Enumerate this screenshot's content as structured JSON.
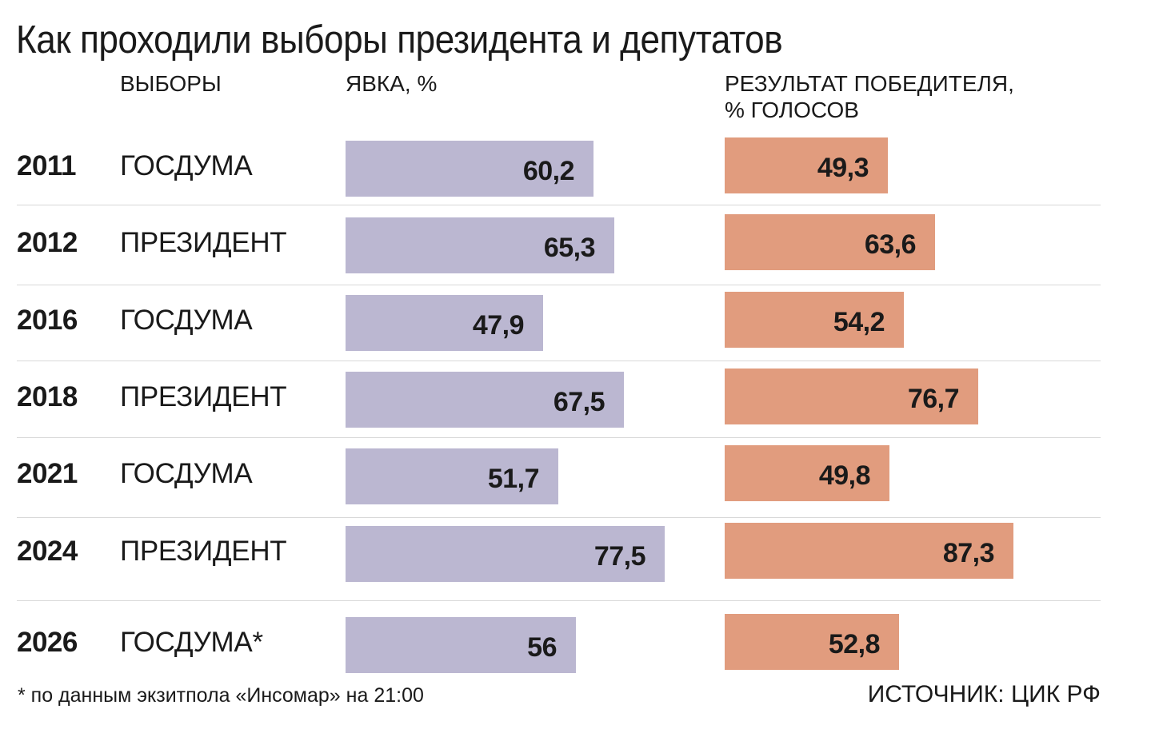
{
  "title": "Как проходили выборы президента и депутатов",
  "headers": {
    "elections": "ВЫБОРЫ",
    "turnout": "ЯВКА, %",
    "result_line1": "РЕЗУЛЬТАТ ПОБЕДИТЕЛЯ,",
    "result_line2": "% ГОЛОСОВ"
  },
  "colors": {
    "turnout": "#bbb7d1",
    "result": "#e19c7e",
    "divider": "#d8d8d8",
    "text": "#1a1a1a"
  },
  "chart_data": {
    "type": "bar",
    "orientation": "horizontal",
    "categories": [
      "2011",
      "2012",
      "2016",
      "2018",
      "2021",
      "2024",
      "2026"
    ],
    "election_types": [
      "ГОСДУМА",
      "ПРЕЗИДЕНТ",
      "ГОСДУМА",
      "ПРЕЗИДЕНТ",
      "ГОСДУМА",
      "ПРЕЗИДЕНТ",
      "ГОСДУМА*"
    ],
    "series": [
      {
        "name": "ЯВКА, %",
        "values": [
          60.2,
          65.3,
          47.9,
          67.5,
          51.7,
          77.5,
          56
        ],
        "labels": [
          "60,2",
          "65,3",
          "47,9",
          "67,5",
          "51,7",
          "77,5",
          "56"
        ]
      },
      {
        "name": "РЕЗУЛЬТАТ ПОБЕДИТЕЛЯ, % ГОЛОСОВ",
        "values": [
          49.3,
          63.6,
          54.2,
          76.7,
          49.8,
          87.3,
          52.8
        ],
        "labels": [
          "49,3",
          "63,6",
          "54,2",
          "76,7",
          "49,8",
          "87,3",
          "52,8"
        ]
      }
    ],
    "xlim": [
      0,
      100
    ],
    "grid": false,
    "legend": "none"
  },
  "footnote": "* по данным экзитпола «Инсомар» на 21:00",
  "source": "ИСТОЧНИК: ЦИК РФ"
}
